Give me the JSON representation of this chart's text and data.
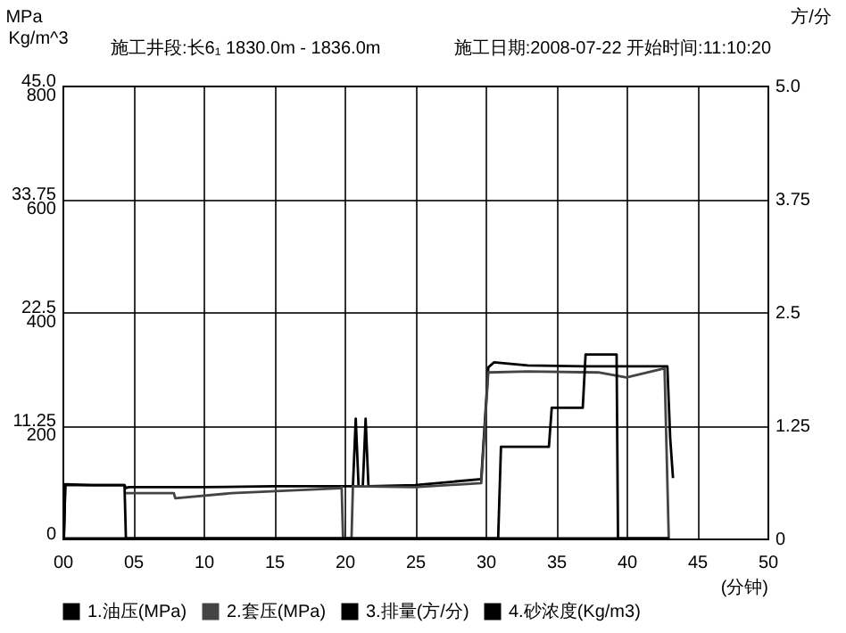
{
  "chart_data": {
    "type": "line",
    "title": "施工井段:长6₁ 1830.0m - 1836.0m",
    "subtitle": "施工日期:2008-07-22  开始时间:11:10:20",
    "xlabel": "(分钟)",
    "ylabel": "MPa",
    "y3label": "Kg/m^3",
    "y2label": "方/分",
    "xlim": [
      0,
      50
    ],
    "xticks": [
      {
        "value": 0,
        "label": "00"
      },
      {
        "value": 5,
        "label": "05"
      },
      10,
      15,
      20,
      25,
      30,
      35,
      40,
      45,
      50
    ],
    "ylim": [
      0,
      45
    ],
    "yticks": [
      0,
      11.25,
      22.5,
      33.75,
      {
        "value": 45,
        "label": "45.0"
      }
    ],
    "y3lim": [
      0,
      800
    ],
    "y3ticks": [
      200,
      400,
      600,
      800
    ],
    "y2lim": [
      0,
      5
    ],
    "y2ticks": [
      0,
      1.25,
      2.5,
      3.75,
      {
        "value": 5,
        "label": "5.0"
      }
    ],
    "grid": true,
    "legend": "bottom",
    "line_style": "solid",
    "marker": "none",
    "series": [
      {
        "name": "1.油压(MPa)",
        "color": "#000000",
        "x": [
          0.1,
          0.2,
          2,
          4.4,
          4.5,
          4.7,
          10,
          15,
          19.8,
          20.6,
          20.8,
          21.0,
          21.3,
          21.5,
          21.7,
          25,
          29.7,
          30.2,
          30.6,
          33,
          37,
          42.9,
          43.1,
          43.3
        ],
        "values": [
          0,
          5.4,
          5.3,
          5.3,
          5.0,
          5.1,
          5.1,
          5.2,
          5.2,
          5.2,
          11.9,
          5.2,
          5.2,
          11.9,
          5.2,
          5.3,
          5.9,
          17.0,
          17.5,
          17.2,
          17.1,
          17.1,
          10,
          6.0
        ]
      },
      {
        "name": "2.套压(MPa)",
        "color": "#444444",
        "x": [
          4.5,
          7.9,
          8.0,
          12,
          19.7,
          19.8,
          19.9,
          20.5,
          20.6,
          25,
          29.7,
          30.2,
          33,
          38,
          40,
          42.7,
          43.0
        ],
        "values": [
          4.5,
          4.5,
          4.0,
          4.5,
          5.0,
          5.1,
          0,
          0,
          5.2,
          5.1,
          5.5,
          16.5,
          16.6,
          16.5,
          16.0,
          16.9,
          0
        ]
      },
      {
        "name": "3.排量(方/分)",
        "color": "#000000",
        "axis": "y2",
        "x": [
          0,
          0.1,
          0.2,
          4.4,
          4.5,
          43
        ],
        "values": [
          0,
          0,
          0.59,
          0.59,
          0,
          0
        ]
      },
      {
        "name": "4.砂浓度(Kg/m3)",
        "color": "#000000",
        "axis": "y3",
        "x": [
          0,
          30.9,
          31.1,
          34.5,
          34.7,
          36.9,
          37.1,
          39.3,
          39.4,
          43
        ],
        "values": [
          0,
          0,
          162,
          162,
          231,
          231,
          325,
          325,
          0,
          0
        ]
      }
    ]
  }
}
